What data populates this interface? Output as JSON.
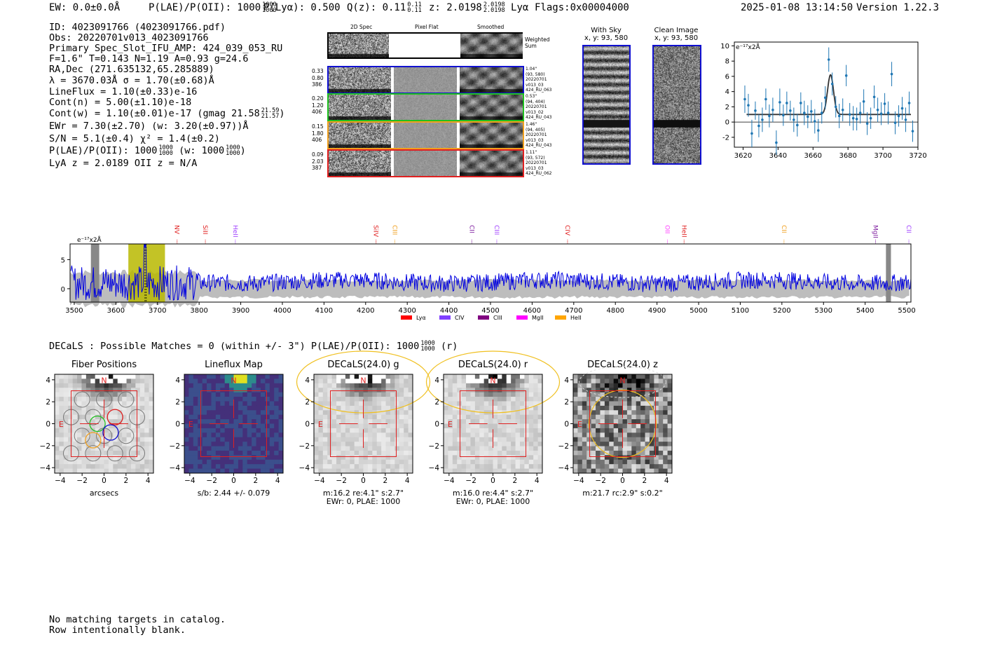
{
  "header": {
    "ew": "EW: 0.0±0.0Å",
    "plae_label": "P(LAE)/P(OII): 1000",
    "plae_hi": "1000",
    "plae_lo": "1000",
    "plya": "P(Lyα): 0.500",
    "qz_label": "Q(z): 0.11",
    "qz_hi": "0.11",
    "qz_lo": "0.11",
    "z_label": "z: 2.0198",
    "z_hi": "2.0198",
    "z_lo": "2.0198",
    "z_line": "Lyα",
    "flags": "Flags:0x00004000",
    "timestamp": "2025-01-08 13:14:50",
    "version": "Version 1.22.3"
  },
  "info": {
    "id": "ID: 4023091766 (4023091766.pdf)",
    "obs": "Obs: 20220701v013_4023091766",
    "primary": "Primary Spec_Slot_IFU_AMP: 424_039_053_RU",
    "fta": "F=1.6\"  T=0.143  N=1.19  A=0.93  g=24.6",
    "radec": "RA,Dec (271.635132,65.285889)",
    "lambda": "λ = 3670.03Å  σ = 1.70(±0.68)Å",
    "lineflux": "LineFlux = 1.10(±0.33)e-16",
    "contn": "Cont(n) = 5.00(±1.10)e-18",
    "contw": "Cont(w) = 1.10(±0.01)e-17 (gmag 21.58",
    "gmag_hi": "21.59",
    "gmag_lo": "21.57",
    "contw_end": ")",
    "ewr": "EWr = 7.30(±2.70) (w: 3.20(±0.97))Å",
    "sn": "S/N = 5.1(±0.4)  χ² = 1.4(±0.2)",
    "plae": "P(LAE)/P(OII): 1000",
    "plae_hi": "1000",
    "plae_lo": "1000",
    "plae_w": "(w: 1000",
    "plae_w_hi": "1000",
    "plae_w_lo": "1000",
    "plae_end": ")",
    "lyaz": "LyA z = 2.0189  OII z = N/A"
  },
  "cutouts": {
    "col_headers": [
      "2D Spec",
      "Pixel Flat",
      "Smoothed"
    ],
    "weighted_sum": [
      "Weighted",
      "Sum"
    ],
    "rows": [
      {
        "left": [
          "0.33",
          "0.80",
          "386"
        ],
        "right": [
          "1.04\"",
          "(93, 580)",
          "20220701",
          "v013_03",
          "424_RU_063"
        ],
        "color": "#1010d0"
      },
      {
        "left": [
          "0.20",
          "1.20",
          "406"
        ],
        "right": [
          "0.53\"",
          "(94, 404)",
          "20220701",
          "v013_02",
          "424_RU_043"
        ],
        "color": "#20c020"
      },
      {
        "left": [
          "0.15",
          "1.80",
          "406"
        ],
        "right": [
          "1.46\"",
          "(94, 405)",
          "20220701",
          "v013_03",
          "424_RU_043"
        ],
        "color": "#f0a020"
      },
      {
        "left": [
          "0.09",
          "2.03",
          "387"
        ],
        "right": [
          "1.11\"",
          "(93, 572)",
          "20220701",
          "v013_03",
          "424_RU_062"
        ],
        "color": "#e02020"
      }
    ],
    "with_sky": {
      "title": "With Sky",
      "coords": "x, y: 93, 580"
    },
    "clean": {
      "title": "Clean Image",
      "coords": "x, y: 93, 580"
    }
  },
  "zoom_chart": {
    "type": "line",
    "ylabel": "e⁻¹⁷x2Å",
    "xlim": [
      3615,
      3720
    ],
    "ylim": [
      -3.3,
      10.5
    ],
    "xticks": [
      3620,
      3640,
      3660,
      3680,
      3700,
      3720
    ],
    "yticks": [
      -2,
      0,
      2,
      4,
      6,
      8,
      10
    ],
    "points": [
      [
        3621,
        3.0,
        1.8
      ],
      [
        3623,
        2.2,
        1.5
      ],
      [
        3625,
        -1.5,
        1.8
      ],
      [
        3627,
        1.5,
        1.2
      ],
      [
        3629,
        -0.5,
        1.5
      ],
      [
        3631,
        0.3,
        1.6
      ],
      [
        3633,
        3.0,
        1.4
      ],
      [
        3635,
        0.8,
        1.5
      ],
      [
        3637,
        1.6,
        1.6
      ],
      [
        3639,
        -2.7,
        1.6
      ],
      [
        3641,
        2.6,
        1.8
      ],
      [
        3643,
        0.9,
        1.4
      ],
      [
        3645,
        2.5,
        1.5
      ],
      [
        3647,
        1.5,
        1.3
      ],
      [
        3649,
        0.3,
        1.6
      ],
      [
        3651,
        -0.4,
        1.5
      ],
      [
        3653,
        2.5,
        1.4
      ],
      [
        3655,
        1.2,
        1.6
      ],
      [
        3657,
        0.7,
        1.5
      ],
      [
        3659,
        1.4,
        1.5
      ],
      [
        3661,
        0.1,
        1.6
      ],
      [
        3663,
        -1.1,
        1.5
      ],
      [
        3665,
        1.2,
        1.4
      ],
      [
        3667,
        3.2,
        1.5
      ],
      [
        3669,
        8.2,
        1.6
      ],
      [
        3671,
        5.0,
        1.5
      ],
      [
        3673,
        2.0,
        1.4
      ],
      [
        3675,
        0.8,
        1.6
      ],
      [
        3677,
        1.6,
        1.5
      ],
      [
        3679,
        6.1,
        1.4
      ],
      [
        3681,
        1.0,
        1.5
      ],
      [
        3683,
        0.5,
        1.6
      ],
      [
        3685,
        0.4,
        1.5
      ],
      [
        3687,
        1.2,
        1.4
      ],
      [
        3689,
        2.7,
        1.6
      ],
      [
        3691,
        -0.2,
        1.5
      ],
      [
        3693,
        0.5,
        1.4
      ],
      [
        3695,
        3.3,
        1.5
      ],
      [
        3697,
        1.6,
        1.6
      ],
      [
        3699,
        1.1,
        1.5
      ],
      [
        3701,
        2.4,
        1.4
      ],
      [
        3703,
        1.2,
        1.5
      ],
      [
        3705,
        6.3,
        1.6
      ],
      [
        3707,
        -0.1,
        1.5
      ],
      [
        3709,
        0.8,
        1.4
      ],
      [
        3711,
        1.8,
        1.5
      ],
      [
        3713,
        0.3,
        1.6
      ],
      [
        3715,
        2.5,
        1.5
      ],
      [
        3717,
        -1.2,
        1.4
      ]
    ],
    "model": {
      "baseline": 1.0,
      "amplitude": 5.2,
      "center": 3670.0,
      "sigma": 1.7,
      "x0": 3622,
      "x1": 3716
    }
  },
  "full_spectrum": {
    "type": "line",
    "ylabel": "e⁻¹⁷x2Å",
    "xlim": [
      3490,
      5510
    ],
    "ylim": [
      -2.3,
      7.7
    ],
    "xticks": [
      3500,
      3600,
      3700,
      3800,
      3900,
      4000,
      4100,
      4200,
      4300,
      4400,
      4500,
      4600,
      4700,
      4800,
      4900,
      5000,
      5100,
      5200,
      5300,
      5400,
      5500
    ],
    "yticks": [
      0,
      5
    ],
    "highlight": [
      3630,
      3718
    ],
    "markers": [
      3670,
      3673
    ],
    "lines": [
      {
        "name": "NV",
        "wave": 3742,
        "color": "#e02020"
      },
      {
        "name": "SiII",
        "wave": 3810,
        "color": "#e02020"
      },
      {
        "name": "HeII",
        "wave": 3882,
        "color": "#a040ff"
      },
      {
        "name": "SiIV",
        "wave": 4220,
        "color": "#e02020"
      },
      {
        "name": "CIII",
        "wave": 4265,
        "color": "#f0a020"
      },
      {
        "name": "CII",
        "wave": 4450,
        "color": "#8020a0"
      },
      {
        "name": "CIII",
        "wave": 4510,
        "color": "#a040ff"
      },
      {
        "name": "CIV",
        "wave": 4680,
        "color": "#e02020"
      },
      {
        "name": "OII",
        "wave": 4920,
        "color": "#ff40ff"
      },
      {
        "name": "HeII",
        "wave": 4960,
        "color": "#e02020"
      },
      {
        "name": "CII",
        "wave": 5200,
        "color": "#f0a020"
      },
      {
        "name": "MgII",
        "wave": 5420,
        "color": "#8020a0"
      },
      {
        "name": "CII",
        "wave": 5500,
        "color": "#a040ff"
      }
    ],
    "legend": [
      {
        "name": "Lyα",
        "color": "#ff0000"
      },
      {
        "name": "CIV",
        "color": "#8040ff"
      },
      {
        "name": "CIII",
        "color": "#800080"
      },
      {
        "name": "MgII",
        "color": "#ff00ff"
      },
      {
        "name": "HeII",
        "color": "#ffa500"
      }
    ]
  },
  "decals": {
    "header": "DECaLS : Possible Matches = 0 (within +/- 3\")  P(LAE)/P(OII): 1000",
    "hi": "1000",
    "lo": "1000",
    "band": "(r)",
    "ticks": [
      -4,
      -2,
      0,
      2,
      4
    ],
    "panels": [
      {
        "title": "Fiber Positions",
        "labels": [
          "arcsecs"
        ]
      },
      {
        "title": "Lineflux Map",
        "labels": [
          "s/b: 2.44 +/- 0.079"
        ]
      },
      {
        "title": "DECaLS(24.0) g",
        "labels": [
          "m:16.2  re:4.1\"  s:2.7\"",
          "EWr: 0, PLAE: 1000"
        ]
      },
      {
        "title": "DECaLS(24.0) r",
        "labels": [
          "m:16.0  re:4.4\"  s:2.7\"",
          "EWr: 0, PLAE: 1000"
        ]
      },
      {
        "title": "DECaLS(24.0) z",
        "labels": [
          "m:21.7 rc:2.9\"  s:0.2\""
        ]
      }
    ]
  },
  "footer": {
    "line1": "No matching targets in catalog.",
    "line2": "Row intentionally blank."
  }
}
